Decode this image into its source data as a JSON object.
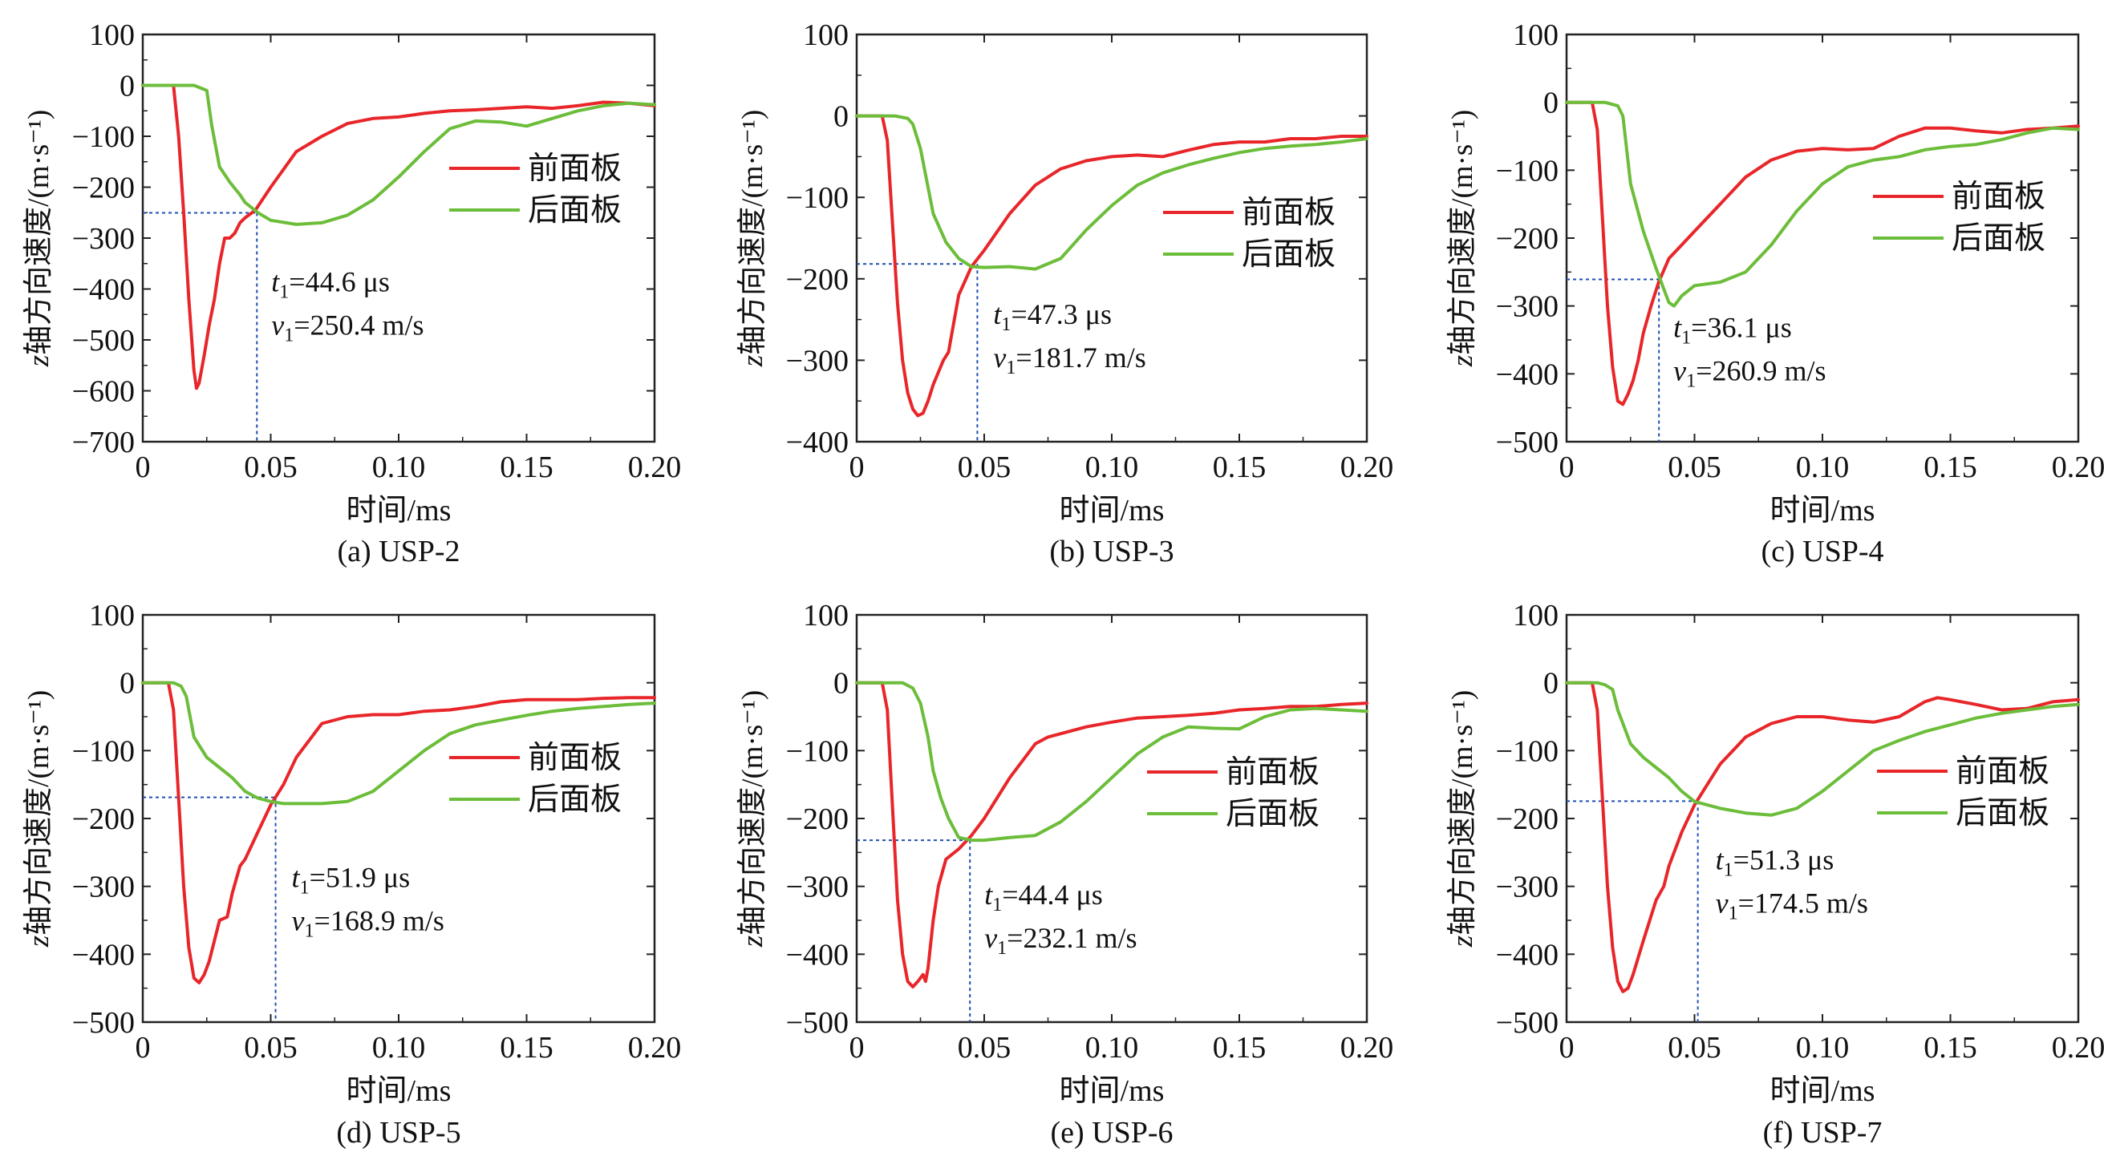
{
  "chart_data": [
    {
      "type": "line",
      "caption": "(a) USP-2",
      "xlabel": "时间/ms",
      "ylabel_prefix": "z",
      "ylabel": "轴方向速度/(m·s⁻¹)",
      "xlim": [
        0,
        0.2
      ],
      "ylim": [
        -700,
        100
      ],
      "xticks": [
        "0",
        "0.05",
        "0.10",
        "0.15",
        "0.20"
      ],
      "yticks": [
        "100",
        "0",
        "−100",
        "−200",
        "−300",
        "−400",
        "−500",
        "−600",
        "−700"
      ],
      "legend": "right-upper",
      "annotation": {
        "t_label": "t",
        "t_sub": "1",
        "t_value": "=44.6 μs",
        "v_label": "v",
        "v_sub": "1",
        "v_value": "=250.4 m/s",
        "t": 0.0446,
        "v": -250.4
      },
      "series": [
        {
          "name": "前面板",
          "color": "#e8262a",
          "x": [
            0,
            0.012,
            0.014,
            0.016,
            0.018,
            0.02,
            0.021,
            0.022,
            0.024,
            0.026,
            0.028,
            0.03,
            0.032,
            0.034,
            0.036,
            0.038,
            0.04,
            0.044,
            0.05,
            0.06,
            0.07,
            0.08,
            0.09,
            0.1,
            0.11,
            0.12,
            0.13,
            0.14,
            0.15,
            0.16,
            0.17,
            0.18,
            0.19,
            0.2
          ],
          "y": [
            0,
            0,
            -100,
            -250,
            -420,
            -560,
            -595,
            -585,
            -530,
            -470,
            -420,
            -350,
            -300,
            -300,
            -290,
            -270,
            -260,
            -245,
            -200,
            -130,
            -100,
            -75,
            -65,
            -62,
            -55,
            -50,
            -48,
            -45,
            -42,
            -45,
            -40,
            -33,
            -35,
            -40
          ]
        },
        {
          "name": "后面板",
          "color": "#6cbd3a",
          "x": [
            0,
            0.01,
            0.02,
            0.025,
            0.027,
            0.03,
            0.034,
            0.038,
            0.04,
            0.045,
            0.05,
            0.06,
            0.07,
            0.08,
            0.09,
            0.1,
            0.11,
            0.12,
            0.13,
            0.14,
            0.15,
            0.16,
            0.17,
            0.18,
            0.19,
            0.2
          ],
          "y": [
            0,
            0,
            0,
            -10,
            -80,
            -160,
            -190,
            -215,
            -230,
            -250,
            -265,
            -273,
            -270,
            -255,
            -225,
            -180,
            -130,
            -85,
            -70,
            -72,
            -80,
            -65,
            -50,
            -40,
            -35,
            -38
          ]
        }
      ]
    },
    {
      "type": "line",
      "caption": "(b) USP-3",
      "xlabel": "时间/ms",
      "ylabel_prefix": "z",
      "ylabel": "轴方向速度/(m·s⁻¹)",
      "xlim": [
        0,
        0.2
      ],
      "ylim": [
        -400,
        100
      ],
      "xticks": [
        "0",
        "0.05",
        "0.10",
        "0.15",
        "0.20"
      ],
      "yticks": [
        "100",
        "0",
        "−100",
        "−200",
        "−300",
        "−400"
      ],
      "legend": "right-upper",
      "annotation": {
        "t_label": "t",
        "t_sub": "1",
        "t_value": "=47.3 μs",
        "v_label": "v",
        "v_sub": "1",
        "v_value": "=181.7 m/s",
        "t": 0.0473,
        "v": -181.7
      },
      "series": [
        {
          "name": "前面板",
          "color": "#e8262a",
          "x": [
            0,
            0.01,
            0.012,
            0.014,
            0.016,
            0.018,
            0.02,
            0.022,
            0.024,
            0.026,
            0.028,
            0.03,
            0.034,
            0.036,
            0.04,
            0.045,
            0.05,
            0.06,
            0.07,
            0.08,
            0.09,
            0.1,
            0.11,
            0.12,
            0.13,
            0.14,
            0.15,
            0.16,
            0.17,
            0.18,
            0.19,
            0.2
          ],
          "y": [
            0,
            0,
            -30,
            -130,
            -230,
            -300,
            -340,
            -360,
            -368,
            -365,
            -350,
            -330,
            -300,
            -290,
            -220,
            -185,
            -165,
            -120,
            -85,
            -65,
            -55,
            -50,
            -48,
            -50,
            -42,
            -35,
            -32,
            -32,
            -28,
            -28,
            -25,
            -25
          ]
        },
        {
          "name": "后面板",
          "color": "#6cbd3a",
          "x": [
            0,
            0.015,
            0.02,
            0.022,
            0.025,
            0.03,
            0.035,
            0.04,
            0.045,
            0.05,
            0.06,
            0.07,
            0.08,
            0.09,
            0.1,
            0.11,
            0.12,
            0.13,
            0.14,
            0.15,
            0.16,
            0.17,
            0.18,
            0.19,
            0.2
          ],
          "y": [
            0,
            0,
            -3,
            -10,
            -40,
            -120,
            -155,
            -175,
            -185,
            -186,
            -185,
            -188,
            -175,
            -140,
            -110,
            -85,
            -70,
            -60,
            -52,
            -45,
            -40,
            -37,
            -35,
            -32,
            -28
          ]
        }
      ]
    },
    {
      "type": "line",
      "caption": "(c) USP-4",
      "xlabel": "时间/ms",
      "ylabel_prefix": "z",
      "ylabel": "轴方向速度/(m·s⁻¹)",
      "xlim": [
        0,
        0.2
      ],
      "ylim": [
        -500,
        100
      ],
      "xticks": [
        "0",
        "0.05",
        "0.10",
        "0.15",
        "0.20"
      ],
      "yticks": [
        "100",
        "0",
        "−100",
        "−200",
        "−300",
        "−400",
        "−500"
      ],
      "legend": "right-upper",
      "annotation": {
        "t_label": "t",
        "t_sub": "1",
        "t_value": "=36.1 μs",
        "v_label": "v",
        "v_sub": "1",
        "v_value": "=260.9 m/s",
        "t": 0.0361,
        "v": -260.9
      },
      "series": [
        {
          "name": "前面板",
          "color": "#e8262a",
          "x": [
            0,
            0.01,
            0.012,
            0.014,
            0.016,
            0.018,
            0.02,
            0.022,
            0.024,
            0.026,
            0.028,
            0.03,
            0.033,
            0.036,
            0.04,
            0.045,
            0.05,
            0.06,
            0.07,
            0.08,
            0.09,
            0.1,
            0.11,
            0.12,
            0.13,
            0.14,
            0.15,
            0.16,
            0.17,
            0.18,
            0.19,
            0.2
          ],
          "y": [
            0,
            0,
            -40,
            -170,
            -300,
            -390,
            -440,
            -445,
            -430,
            -410,
            -380,
            -340,
            -300,
            -265,
            -230,
            -210,
            -190,
            -150,
            -110,
            -85,
            -72,
            -68,
            -70,
            -68,
            -50,
            -38,
            -38,
            -42,
            -45,
            -40,
            -38,
            -35
          ]
        },
        {
          "name": "后面板",
          "color": "#6cbd3a",
          "x": [
            0,
            0.015,
            0.02,
            0.022,
            0.025,
            0.03,
            0.035,
            0.038,
            0.04,
            0.042,
            0.045,
            0.05,
            0.06,
            0.07,
            0.08,
            0.09,
            0.1,
            0.11,
            0.12,
            0.13,
            0.14,
            0.15,
            0.16,
            0.17,
            0.18,
            0.19,
            0.2
          ],
          "y": [
            0,
            0,
            -5,
            -20,
            -120,
            -190,
            -245,
            -275,
            -295,
            -300,
            -285,
            -270,
            -265,
            -250,
            -210,
            -160,
            -120,
            -95,
            -85,
            -80,
            -70,
            -65,
            -62,
            -55,
            -45,
            -38,
            -40
          ]
        }
      ]
    },
    {
      "type": "line",
      "caption": "(d) USP-5",
      "xlabel": "时间/ms",
      "ylabel_prefix": "z",
      "ylabel": "轴方向速度/(m·s⁻¹)",
      "xlim": [
        0,
        0.2
      ],
      "ylim": [
        -500,
        100
      ],
      "xticks": [
        "0",
        "0.05",
        "0.10",
        "0.15",
        "0.20"
      ],
      "yticks": [
        "100",
        "0",
        "−100",
        "−200",
        "−300",
        "−400",
        "−500"
      ],
      "legend": "right-upper",
      "annotation": {
        "t_label": "t",
        "t_sub": "1",
        "t_value": "=51.9 μs",
        "v_label": "v",
        "v_sub": "1",
        "v_value": "=168.9 m/s",
        "t": 0.0519,
        "v": -168.9
      },
      "series": [
        {
          "name": "前面板",
          "color": "#e8262a",
          "x": [
            0,
            0.01,
            0.012,
            0.014,
            0.016,
            0.018,
            0.02,
            0.022,
            0.024,
            0.026,
            0.028,
            0.03,
            0.033,
            0.035,
            0.038,
            0.04,
            0.045,
            0.05,
            0.055,
            0.06,
            0.07,
            0.08,
            0.09,
            0.1,
            0.11,
            0.12,
            0.13,
            0.14,
            0.15,
            0.16,
            0.17,
            0.18,
            0.19,
            0.2
          ],
          "y": [
            0,
            0,
            -40,
            -170,
            -300,
            -390,
            -435,
            -442,
            -430,
            -410,
            -380,
            -350,
            -345,
            -310,
            -270,
            -260,
            -220,
            -180,
            -150,
            -110,
            -60,
            -50,
            -47,
            -47,
            -42,
            -40,
            -35,
            -28,
            -25,
            -25,
            -25,
            -23,
            -22,
            -22
          ]
        },
        {
          "name": "后面板",
          "color": "#6cbd3a",
          "x": [
            0,
            0.012,
            0.015,
            0.017,
            0.02,
            0.025,
            0.03,
            0.035,
            0.04,
            0.045,
            0.05,
            0.055,
            0.06,
            0.07,
            0.08,
            0.09,
            0.1,
            0.11,
            0.12,
            0.13,
            0.14,
            0.15,
            0.16,
            0.17,
            0.18,
            0.19,
            0.2
          ],
          "y": [
            0,
            0,
            -5,
            -20,
            -80,
            -110,
            -125,
            -140,
            -160,
            -170,
            -175,
            -178,
            -178,
            -178,
            -175,
            -160,
            -130,
            -100,
            -75,
            -62,
            -55,
            -48,
            -42,
            -38,
            -35,
            -32,
            -30
          ]
        }
      ]
    },
    {
      "type": "line",
      "caption": "(e) USP-6",
      "xlabel": "时间/ms",
      "ylabel_prefix": "z",
      "ylabel": "轴方向速度/(m·s⁻¹)",
      "xlim": [
        0,
        0.2
      ],
      "ylim": [
        -500,
        100
      ],
      "xticks": [
        "0",
        "0.05",
        "0.10",
        "0.15",
        "0.20"
      ],
      "yticks": [
        "100",
        "0",
        "−100",
        "−200",
        "−300",
        "−400",
        "−500"
      ],
      "legend": "right-upper",
      "annotation": {
        "t_label": "t",
        "t_sub": "1",
        "t_value": "=44.4 μs",
        "v_label": "v",
        "v_sub": "1",
        "v_value": "=232.1 m/s",
        "t": 0.0444,
        "v": -232.1
      },
      "series": [
        {
          "name": "前面板",
          "color": "#e8262a",
          "x": [
            0,
            0.01,
            0.012,
            0.014,
            0.016,
            0.018,
            0.02,
            0.022,
            0.024,
            0.026,
            0.027,
            0.028,
            0.03,
            0.032,
            0.035,
            0.04,
            0.045,
            0.05,
            0.06,
            0.07,
            0.075,
            0.08,
            0.09,
            0.1,
            0.11,
            0.12,
            0.13,
            0.14,
            0.15,
            0.16,
            0.17,
            0.18,
            0.19,
            0.2
          ],
          "y": [
            0,
            0,
            -40,
            -180,
            -320,
            -400,
            -440,
            -448,
            -440,
            -430,
            -440,
            -420,
            -350,
            -300,
            -260,
            -245,
            -225,
            -200,
            -140,
            -90,
            -80,
            -75,
            -65,
            -58,
            -52,
            -50,
            -48,
            -45,
            -40,
            -38,
            -35,
            -35,
            -32,
            -30
          ]
        },
        {
          "name": "后面板",
          "color": "#6cbd3a",
          "x": [
            0,
            0.018,
            0.022,
            0.025,
            0.028,
            0.03,
            0.033,
            0.036,
            0.04,
            0.045,
            0.05,
            0.06,
            0.07,
            0.08,
            0.09,
            0.1,
            0.11,
            0.12,
            0.13,
            0.14,
            0.15,
            0.16,
            0.17,
            0.18,
            0.19,
            0.2
          ],
          "y": [
            0,
            0,
            -8,
            -30,
            -80,
            -130,
            -170,
            -200,
            -228,
            -232,
            -232,
            -228,
            -225,
            -205,
            -175,
            -140,
            -105,
            -80,
            -65,
            -67,
            -68,
            -50,
            -40,
            -38,
            -40,
            -42
          ]
        }
      ]
    },
    {
      "type": "line",
      "caption": "(f) USP-7",
      "xlabel": "时间/ms",
      "ylabel_prefix": "z",
      "ylabel": "轴方向速度/(m·s⁻¹)",
      "xlim": [
        0,
        0.2
      ],
      "ylim": [
        -500,
        100
      ],
      "xticks": [
        "0",
        "0.05",
        "0.10",
        "0.15",
        "0.20"
      ],
      "yticks": [
        "100",
        "0",
        "−100",
        "−200",
        "−300",
        "−400",
        "−500"
      ],
      "legend": "right-upper",
      "annotation": {
        "t_label": "t",
        "t_sub": "1",
        "t_value": "=51.3 μs",
        "v_label": "v",
        "v_sub": "1",
        "v_value": "=174.5 m/s",
        "t": 0.0513,
        "v": -174.5
      },
      "series": [
        {
          "name": "前面板",
          "color": "#e8262a",
          "x": [
            0,
            0.01,
            0.012,
            0.014,
            0.016,
            0.018,
            0.02,
            0.022,
            0.024,
            0.026,
            0.03,
            0.035,
            0.038,
            0.04,
            0.045,
            0.05,
            0.055,
            0.06,
            0.07,
            0.08,
            0.09,
            0.1,
            0.11,
            0.12,
            0.13,
            0.14,
            0.145,
            0.15,
            0.16,
            0.17,
            0.18,
            0.19,
            0.2
          ],
          "y": [
            0,
            0,
            -40,
            -170,
            -300,
            -390,
            -440,
            -455,
            -450,
            -430,
            -380,
            -320,
            -300,
            -270,
            -220,
            -180,
            -150,
            -120,
            -80,
            -60,
            -50,
            -50,
            -55,
            -58,
            -50,
            -28,
            -22,
            -25,
            -32,
            -40,
            -38,
            -28,
            -25
          ]
        },
        {
          "name": "后面板",
          "color": "#6cbd3a",
          "x": [
            0,
            0.012,
            0.015,
            0.018,
            0.02,
            0.025,
            0.03,
            0.035,
            0.04,
            0.045,
            0.05,
            0.055,
            0.06,
            0.07,
            0.08,
            0.09,
            0.1,
            0.11,
            0.12,
            0.13,
            0.14,
            0.15,
            0.16,
            0.17,
            0.18,
            0.19,
            0.2
          ],
          "y": [
            0,
            0,
            -3,
            -10,
            -40,
            -90,
            -110,
            -125,
            -140,
            -160,
            -175,
            -180,
            -185,
            -192,
            -195,
            -185,
            -160,
            -130,
            -100,
            -85,
            -72,
            -62,
            -52,
            -45,
            -40,
            -35,
            -32
          ]
        }
      ]
    }
  ]
}
